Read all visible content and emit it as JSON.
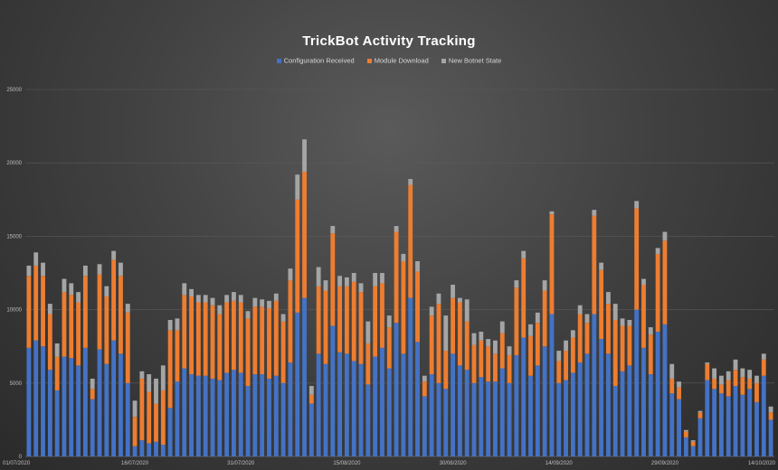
{
  "chart_data": {
    "type": "bar",
    "stacked": true,
    "title": "TrickBot Activity Tracking",
    "xlabel": "",
    "ylabel": "",
    "ylim": [
      0,
      25000
    ],
    "yticks": [
      0,
      5000,
      10000,
      15000,
      20000,
      25000
    ],
    "grid": true,
    "legend_position": "top",
    "categories_start": "2020-07-01",
    "categories_end": "2020-10-14",
    "x_tick_labels": [
      "01/07/2020",
      "16/07/2020",
      "31/07/2020",
      "15/08/2020",
      "30/08/2020",
      "14/09/2020",
      "29/09/2020",
      "14/10/2020"
    ],
    "x_tick_indices": [
      0,
      15,
      30,
      45,
      60,
      75,
      90,
      105
    ],
    "series": [
      {
        "name": "Configuration Received",
        "color": "#4472c4",
        "values": [
          7400,
          7900,
          7500,
          5900,
          4500,
          6800,
          6700,
          6200,
          7400,
          3900,
          7300,
          6300,
          7900,
          7000,
          5000,
          700,
          1100,
          900,
          1000,
          800,
          3300,
          5100,
          6000,
          5600,
          5500,
          5500,
          5300,
          5200,
          5700,
          5900,
          5700,
          4800,
          5600,
          5600,
          5300,
          5500,
          5000,
          6400,
          9800,
          10800,
          3600,
          7000,
          6300,
          8900,
          7100,
          7000,
          6500,
          6300,
          4900,
          6800,
          7400,
          6000,
          9100,
          7000,
          10800,
          7800,
          4100,
          5600,
          5000,
          4600,
          7000,
          6200,
          5900,
          5000,
          5400,
          5100,
          5100,
          6000,
          5000,
          6900,
          8100,
          5500,
          6200,
          7500,
          9700,
          5000,
          5200,
          5700,
          6400,
          7000,
          9700,
          8000,
          7000,
          4800,
          5800,
          6200,
          10000,
          7400,
          5600,
          8500,
          9000,
          4300,
          3900,
          1300,
          700,
          2600,
          5200,
          4600,
          4300,
          4100,
          4800,
          4200,
          4600,
          3700,
          5500,
          2500
        ]
      },
      {
        "name": "Module Download",
        "color": "#ed7d31",
        "values": [
          4900,
          5100,
          4800,
          3800,
          2300,
          4400,
          4300,
          4300,
          4900,
          700,
          5100,
          4600,
          5500,
          5300,
          4800,
          2000,
          4200,
          3500,
          2600,
          3700,
          5300,
          3500,
          5000,
          5300,
          5000,
          5000,
          5000,
          4500,
          4800,
          4700,
          4800,
          4600,
          4600,
          4600,
          4800,
          5100,
          4200,
          5600,
          7700,
          8600,
          600,
          4600,
          5000,
          6300,
          4500,
          4600,
          5400,
          4900,
          2800,
          4800,
          4400,
          2800,
          6200,
          6300,
          7700,
          4800,
          1000,
          4000,
          5400,
          2600,
          3800,
          4300,
          3300,
          2600,
          2500,
          2400,
          1900,
          2400,
          1900,
          4600,
          5400,
          2700,
          2900,
          3800,
          6800,
          1500,
          2000,
          2400,
          3300,
          2100,
          6700,
          4700,
          3400,
          4500,
          3100,
          2700,
          6900,
          4300,
          2700,
          5300,
          5700,
          1000,
          800,
          400,
          300,
          400,
          1100,
          700,
          600,
          1100,
          1100,
          1200,
          700,
          1300,
          1100,
          500
        ]
      },
      {
        "name": "New Botnet State",
        "color": "#a5a5a5",
        "values": [
          700,
          900,
          900,
          700,
          900,
          900,
          800,
          700,
          700,
          700,
          700,
          700,
          600,
          900,
          600,
          1100,
          500,
          1200,
          1700,
          1700,
          700,
          800,
          800,
          500,
          500,
          500,
          500,
          600,
          500,
          600,
          500,
          500,
          600,
          500,
          500,
          500,
          500,
          800,
          1700,
          2200,
          600,
          1300,
          700,
          500,
          700,
          600,
          600,
          600,
          1500,
          900,
          700,
          800,
          400,
          500,
          400,
          700,
          400,
          600,
          700,
          2400,
          900,
          300,
          1500,
          800,
          600,
          500,
          900,
          800,
          600,
          500,
          500,
          800,
          700,
          700,
          200,
          700,
          700,
          500,
          600,
          600,
          400,
          500,
          800,
          1100,
          500,
          400,
          500,
          400,
          500,
          400,
          600,
          1000,
          400,
          100,
          100,
          100,
          100,
          700,
          600,
          600,
          700,
          600,
          600,
          500,
          400,
          400
        ]
      }
    ]
  }
}
